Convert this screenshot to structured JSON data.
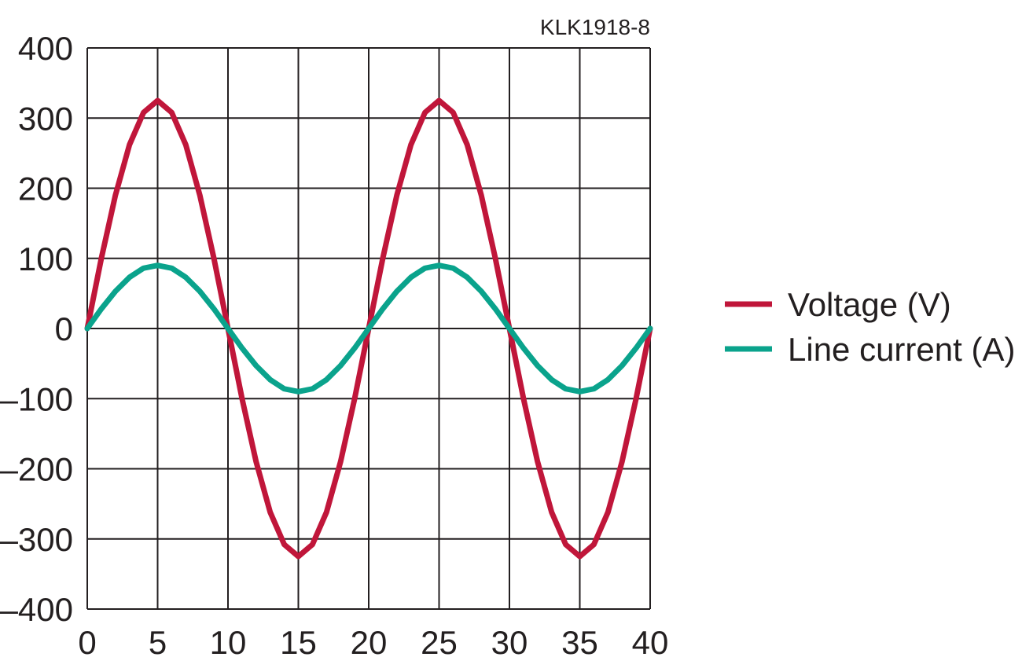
{
  "figure_code": "KLK1918-8",
  "colors": {
    "voltage": "#c0163a",
    "current": "#0aa38c",
    "grid": "#231f20"
  },
  "chart_data": {
    "type": "line",
    "title": "",
    "xlabel": "",
    "ylabel": "",
    "xlim": [
      0,
      40
    ],
    "ylim": [
      -400,
      400
    ],
    "grid": true,
    "legend_position": "right",
    "x_ticks": [
      "0",
      "5",
      "10",
      "15",
      "20",
      "25",
      "30",
      "35",
      "40"
    ],
    "y_ticks": [
      "400",
      "300",
      "200",
      "100",
      "0",
      "–100",
      "–200",
      "–300",
      "–400"
    ],
    "x": [
      0,
      1,
      2,
      3,
      4,
      5,
      6,
      7,
      8,
      9,
      10,
      11,
      12,
      13,
      14,
      15,
      16,
      17,
      18,
      19,
      20,
      21,
      22,
      23,
      24,
      25,
      26,
      27,
      28,
      29,
      30,
      31,
      32,
      33,
      34,
      35,
      36,
      37,
      38,
      39,
      40
    ],
    "series": [
      {
        "name": "Voltage (V)",
        "values": [
          0,
          100,
          190,
          262,
          308,
          325,
          308,
          262,
          190,
          100,
          0,
          -100,
          -190,
          -262,
          -308,
          -325,
          -308,
          -262,
          -190,
          -100,
          0,
          100,
          190,
          262,
          308,
          325,
          308,
          262,
          190,
          100,
          0,
          -100,
          -190,
          -262,
          -308,
          -325,
          -308,
          -262,
          -190,
          -100,
          0
        ]
      },
      {
        "name": "Line current (A)",
        "values": [
          0,
          28,
          53,
          73,
          86,
          90,
          86,
          73,
          53,
          28,
          0,
          -28,
          -53,
          -73,
          -86,
          -90,
          -86,
          -73,
          -53,
          -28,
          0,
          28,
          53,
          73,
          86,
          90,
          86,
          73,
          53,
          28,
          0,
          -28,
          -53,
          -73,
          -86,
          -90,
          -86,
          -73,
          -53,
          -28,
          0
        ]
      }
    ]
  }
}
